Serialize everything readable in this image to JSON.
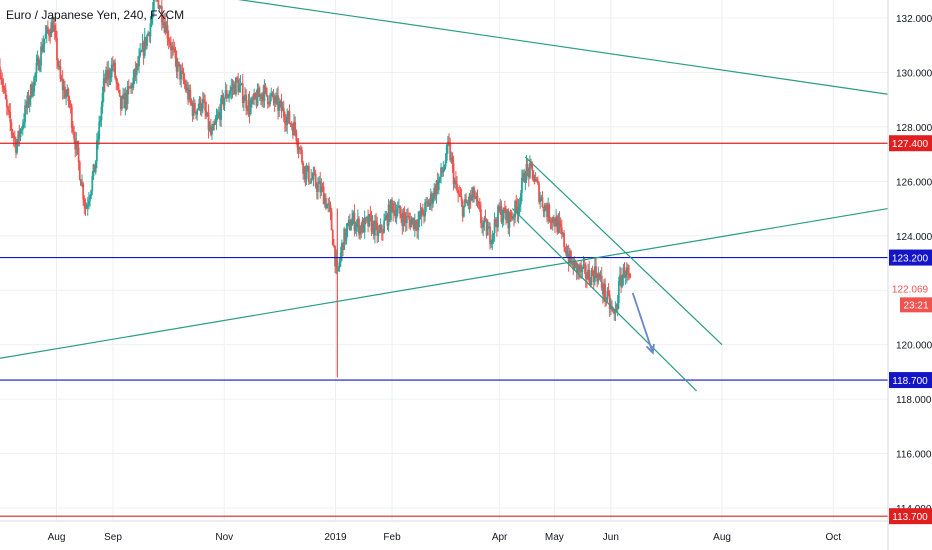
{
  "chart_data": {
    "type": "candlestick",
    "title": "Euro / Japanese Yen, 240, FXCM",
    "xlabel": "",
    "ylabel": "",
    "ylim": [
      113.0,
      133.0
    ],
    "grid": true,
    "colors": {
      "up": "#26a69a",
      "down": "#ef5350",
      "trendline": "#2a9d82",
      "resistance": "#e02020",
      "support": "#1515c8",
      "projection_arrow": "#6b86c9",
      "last_price": "#ef5350",
      "axis_text": "#131722",
      "grid": "#eef0f4"
    },
    "x_axis": {
      "ticks": [
        "Aug",
        "Sep",
        "Nov",
        "2019",
        "Feb",
        "Apr",
        "May",
        "Jun",
        "Aug",
        "Oct"
      ],
      "tick_dates": [
        "2018-08-01",
        "2018-09-01",
        "2018-11-01",
        "2019-01-01",
        "2019-02-01",
        "2019-04-01",
        "2019-05-01",
        "2019-06-01",
        "2019-08-01",
        "2019-10-01"
      ]
    },
    "y_axis": {
      "ticks": [
        "132.000",
        "130.000",
        "128.000",
        "126.000",
        "124.000",
        "122.000",
        "120.000",
        "118.000",
        "116.000",
        "114.000"
      ],
      "tick_values": [
        132,
        130,
        128,
        126,
        124,
        122,
        120,
        118,
        116,
        114
      ]
    },
    "price_path": [
      [
        "2018-07-01",
        130.2
      ],
      [
        "2018-07-05",
        128.5
      ],
      [
        "2018-07-10",
        127.3
      ],
      [
        "2018-07-15",
        128.6
      ],
      [
        "2018-07-20",
        129.8
      ],
      [
        "2018-07-25",
        131.2
      ],
      [
        "2018-07-30",
        131.8
      ],
      [
        "2018-08-03",
        129.7
      ],
      [
        "2018-08-08",
        128.9
      ],
      [
        "2018-08-13",
        126.7
      ],
      [
        "2018-08-17",
        125.0
      ],
      [
        "2018-08-22",
        126.5
      ],
      [
        "2018-08-27",
        129.6
      ],
      [
        "2018-09-01",
        130.3
      ],
      [
        "2018-09-05",
        128.7
      ],
      [
        "2018-09-10",
        129.3
      ],
      [
        "2018-09-15",
        130.3
      ],
      [
        "2018-09-20",
        131.4
      ],
      [
        "2018-09-25",
        132.8
      ],
      [
        "2018-09-30",
        131.7
      ],
      [
        "2018-10-05",
        130.4
      ],
      [
        "2018-10-10",
        129.6
      ],
      [
        "2018-10-15",
        128.6
      ],
      [
        "2018-10-20",
        128.9
      ],
      [
        "2018-10-25",
        127.6
      ],
      [
        "2018-11-01",
        129.1
      ],
      [
        "2018-11-08",
        129.6
      ],
      [
        "2018-11-15",
        128.7
      ],
      [
        "2018-11-22",
        129.3
      ],
      [
        "2018-11-29",
        128.9
      ],
      [
        "2018-12-05",
        128.4
      ],
      [
        "2018-12-10",
        127.9
      ],
      [
        "2018-12-15",
        126.4
      ],
      [
        "2018-12-20",
        126.0
      ],
      [
        "2018-12-25",
        125.6
      ],
      [
        "2018-12-29",
        124.8
      ],
      [
        "2019-01-02",
        122.5
      ],
      [
        "2019-01-05",
        123.8
      ],
      [
        "2019-01-10",
        124.6
      ],
      [
        "2019-01-15",
        124.3
      ],
      [
        "2019-01-20",
        124.5
      ],
      [
        "2019-01-25",
        124.0
      ],
      [
        "2019-02-01",
        125.1
      ],
      [
        "2019-02-08",
        124.6
      ],
      [
        "2019-02-15",
        124.5
      ],
      [
        "2019-02-22",
        125.3
      ],
      [
        "2019-03-01",
        126.4
      ],
      [
        "2019-03-04",
        127.3
      ],
      [
        "2019-03-08",
        125.7
      ],
      [
        "2019-03-12",
        125.0
      ],
      [
        "2019-03-18",
        125.5
      ],
      [
        "2019-03-22",
        124.5
      ],
      [
        "2019-03-27",
        124.0
      ],
      [
        "2019-04-01",
        124.9
      ],
      [
        "2019-04-06",
        124.6
      ],
      [
        "2019-04-11",
        125.1
      ],
      [
        "2019-04-15",
        126.4
      ],
      [
        "2019-04-19",
        126.3
      ],
      [
        "2019-04-24",
        125.3
      ],
      [
        "2019-04-28",
        124.8
      ],
      [
        "2019-05-02",
        124.5
      ],
      [
        "2019-05-06",
        123.8
      ],
      [
        "2019-05-10",
        123.0
      ],
      [
        "2019-05-15",
        122.7
      ],
      [
        "2019-05-20",
        122.5
      ],
      [
        "2019-05-24",
        122.7
      ],
      [
        "2019-05-28",
        122.0
      ],
      [
        "2019-05-31",
        121.5
      ],
      [
        "2019-06-03",
        121.0
      ],
      [
        "2019-06-06",
        122.3
      ],
      [
        "2019-06-09",
        122.8
      ],
      [
        "2019-06-12",
        122.1
      ]
    ],
    "spike": {
      "date": "2019-01-02",
      "high": 125.0,
      "low": 118.8
    },
    "horizontal_levels": [
      {
        "value": 127.4,
        "label": "127.400",
        "color": "#e02020"
      },
      {
        "value": 123.2,
        "label": "123.200",
        "color": "#1515c8"
      },
      {
        "value": 118.7,
        "label": "118.700",
        "color": "#1515c8"
      },
      {
        "value": 113.7,
        "label": "113.700",
        "color": "#e02020"
      }
    ],
    "trendlines": [
      {
        "from": [
          "2018-10-07",
          133.0
        ],
        "to": [
          "2019-10-31",
          129.2
        ]
      },
      {
        "from": [
          "2018-07-01",
          119.5
        ],
        "to": [
          "2019-10-31",
          125.0
        ]
      },
      {
        "from": [
          "2019-04-15",
          126.9
        ],
        "to": [
          "2019-08-01",
          120.0
        ]
      },
      {
        "from": [
          "2019-04-08",
          125.0
        ],
        "to": [
          "2019-07-18",
          118.3
        ]
      }
    ],
    "projection_arrow": {
      "from": [
        "2019-06-13",
        121.9
      ],
      "to": [
        "2019-06-24",
        119.7
      ]
    },
    "last_price": {
      "value": 122.069,
      "label": "122.069",
      "countdown": "23:21"
    }
  }
}
